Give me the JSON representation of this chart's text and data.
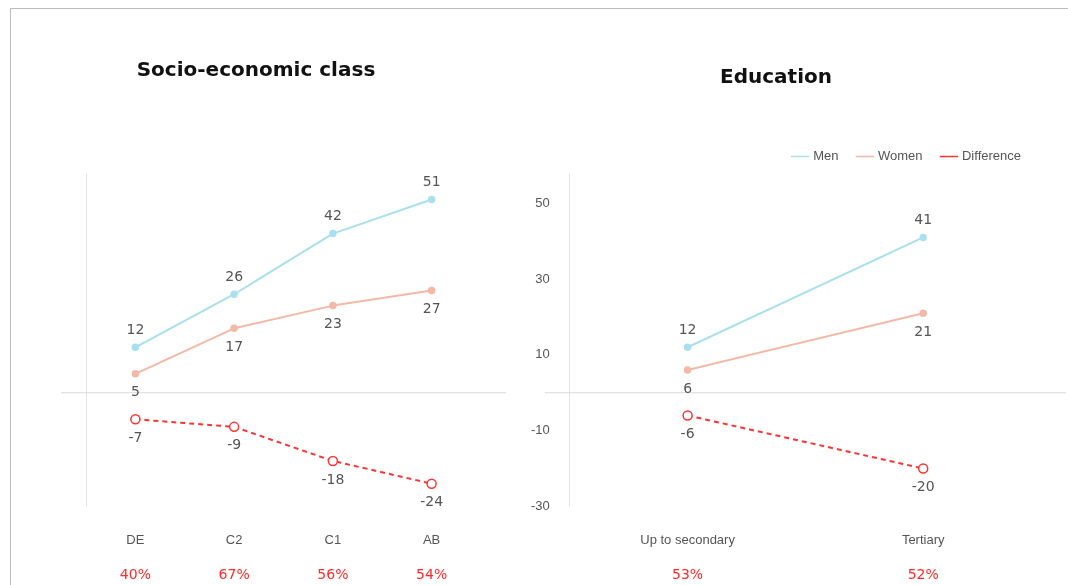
{
  "chart_data": [
    {
      "type": "line",
      "title": "Socio-economic class",
      "categories": [
        "DE",
        "C2",
        "C1",
        "AB"
      ],
      "series": [
        {
          "color": "#a9e0ee",
          "values": [
            12,
            26,
            42,
            51
          ]
        },
        {
          "color": "#f4b9a6",
          "values": [
            5,
            17,
            23,
            27
          ]
        },
        {
          "color": "#ff3333",
          "values": [
            -7,
            -9,
            -18,
            -24
          ],
          "line_style": "dashed"
        }
      ],
      "ylim": [
        -30,
        58
      ],
      "yticks": [
        -30,
        -10,
        10,
        30,
        50
      ],
      "tick_labels": "x",
      "data_labels": true,
      "legend": false,
      "marker": "circle",
      "ref_lines": [
        {
          "axis": "y",
          "value": 0,
          "color": "#d9d9d9"
        }
      ],
      "annotations": [
        "40%",
        "67%",
        "56%",
        "54%"
      ]
    },
    {
      "type": "line",
      "title": "Education",
      "categories": [
        "Up to secondary",
        "Tertiary"
      ],
      "series": [
        {
          "name": "Men",
          "color": "#a9e0ee",
          "values": [
            12,
            41
          ]
        },
        {
          "name": "Women",
          "color": "#f4b9a6",
          "values": [
            6,
            21
          ]
        },
        {
          "name": "Difference",
          "color": "#ff3333",
          "values": [
            -6,
            -20
          ],
          "line_style": "dashed"
        }
      ],
      "ylim": [
        -30,
        58
      ],
      "yticks": [
        -30,
        -10,
        10,
        30,
        50
      ],
      "data_labels": true,
      "legend": "top",
      "marker": "circle",
      "ref_lines": [
        {
          "axis": "y",
          "value": 0,
          "color": "#d9d9d9"
        }
      ],
      "annotations": [
        "53%",
        "52%"
      ]
    }
  ]
}
